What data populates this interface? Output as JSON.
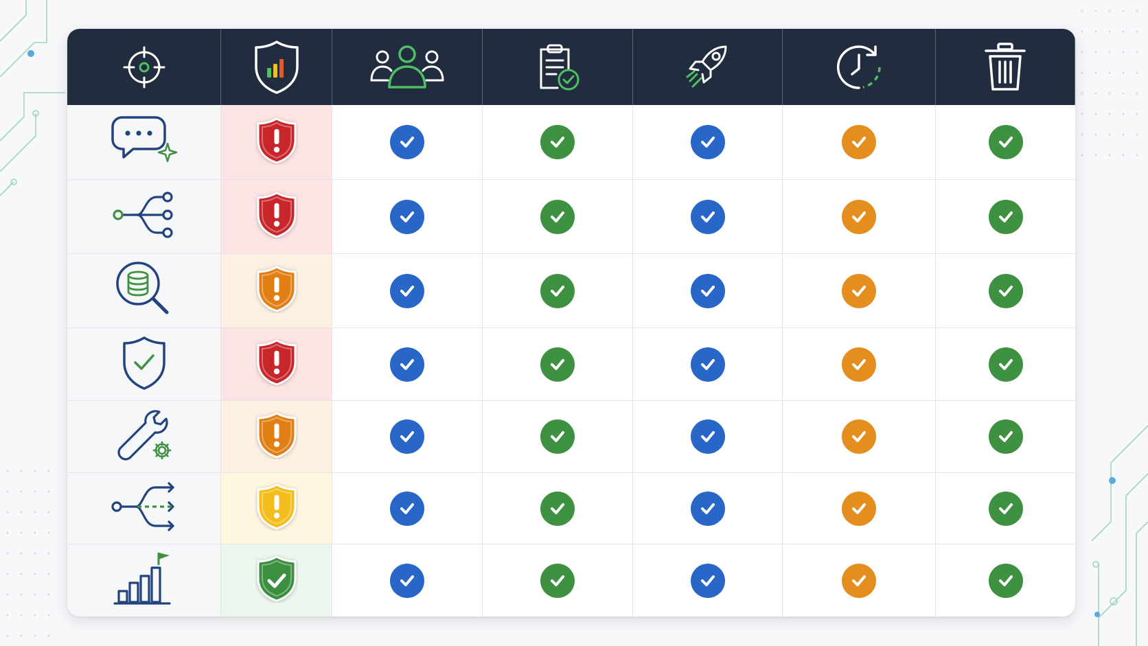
{
  "colors": {
    "header_bg": "#212d3e",
    "blue": "#2866c7",
    "green": "#3f9142",
    "orange": "#e48e1f",
    "risk_high": "#c8262a",
    "risk_medium": "#e17f14",
    "risk_low": "#f3bd1b",
    "risk_ok": "#3c8f3f"
  },
  "columns": [
    {
      "icon": "target-crosshair-icon"
    },
    {
      "icon": "shield-bar-chart-icon"
    },
    {
      "icon": "user-group-icon"
    },
    {
      "icon": "clipboard-check-icon"
    },
    {
      "icon": "rocket-icon"
    },
    {
      "icon": "clock-refresh-icon"
    },
    {
      "icon": "trash-can-icon"
    }
  ],
  "check_colors": [
    "blue",
    "green",
    "blue",
    "orange",
    "green"
  ],
  "rows": [
    {
      "icon": "chat-sparkle-icon",
      "risk": "high"
    },
    {
      "icon": "data-flow-branch-icon",
      "risk": "high"
    },
    {
      "icon": "database-search-icon",
      "risk": "medium"
    },
    {
      "icon": "shield-check-icon",
      "risk": "high"
    },
    {
      "icon": "wrench-gear-icon",
      "risk": "medium"
    },
    {
      "icon": "split-arrows-icon",
      "risk": "low"
    },
    {
      "icon": "growth-chart-flag-icon",
      "risk": "ok"
    }
  ]
}
